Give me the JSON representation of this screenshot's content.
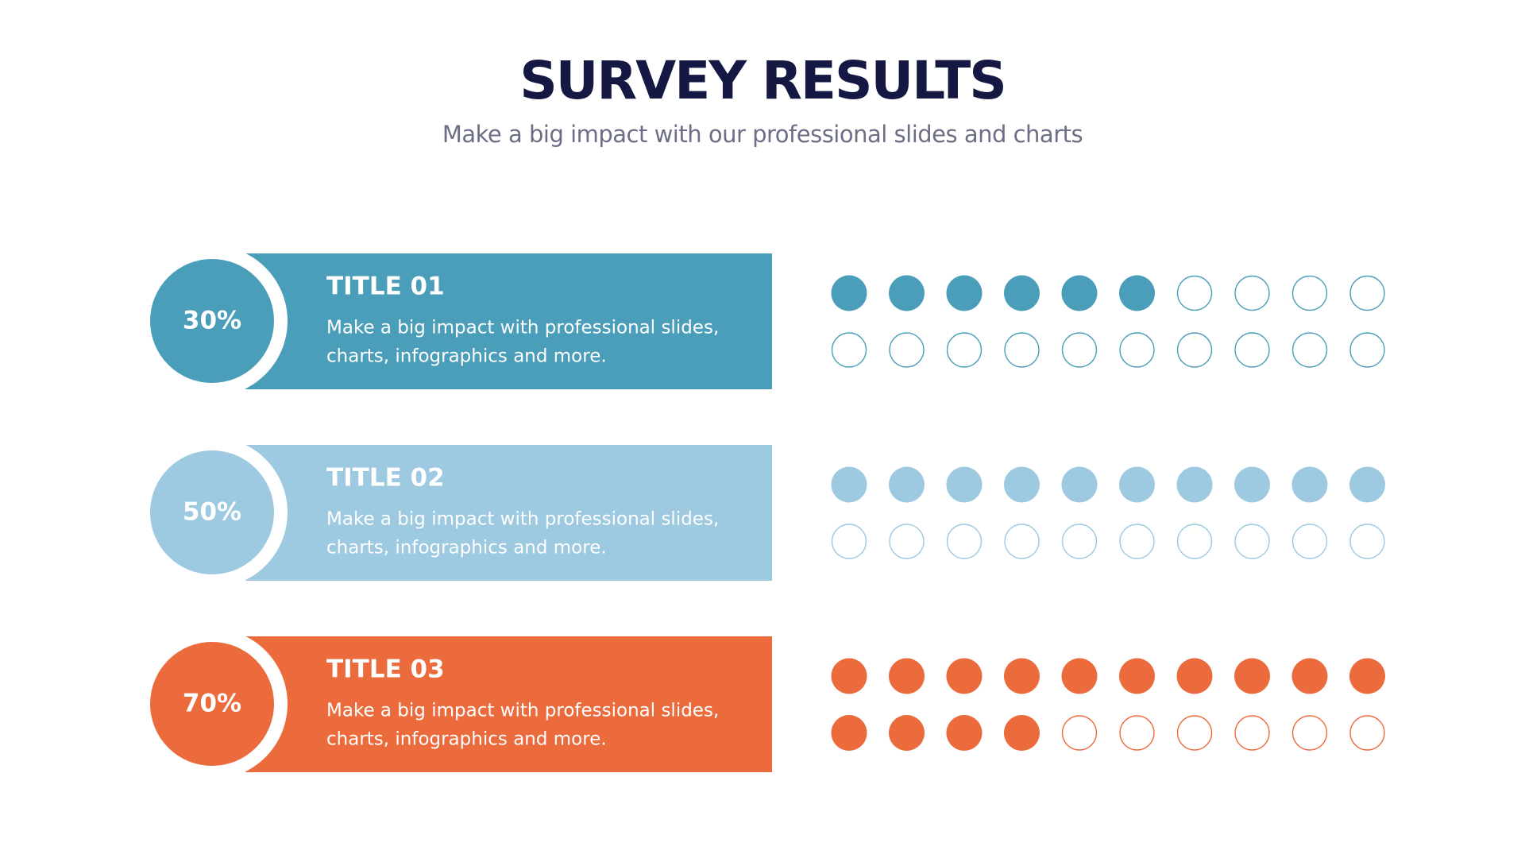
{
  "chart_data": {
    "type": "dots",
    "title": "SURVEY RESULTS",
    "subtitle": "Make a big impact with our professional slides and charts",
    "categories": [
      "TITLE 01",
      "TITLE 02",
      "TITLE 03"
    ],
    "values": [
      30,
      50,
      70
    ],
    "value_labels": [
      "30%",
      "50%",
      "70%"
    ],
    "descriptions": [
      [
        "Make a big impact with professional slides,",
        "charts, infographics and more."
      ],
      [
        "Make a big impact with professional slides,",
        "charts, infographics and more."
      ],
      [
        "Make a big impact with professional slides,",
        "charts, infographics and more."
      ]
    ],
    "colors": [
      "#4b9eb9",
      "#9dc9e1",
      "#eb6b3d"
    ],
    "ylim": [
      0,
      100
    ]
  }
}
